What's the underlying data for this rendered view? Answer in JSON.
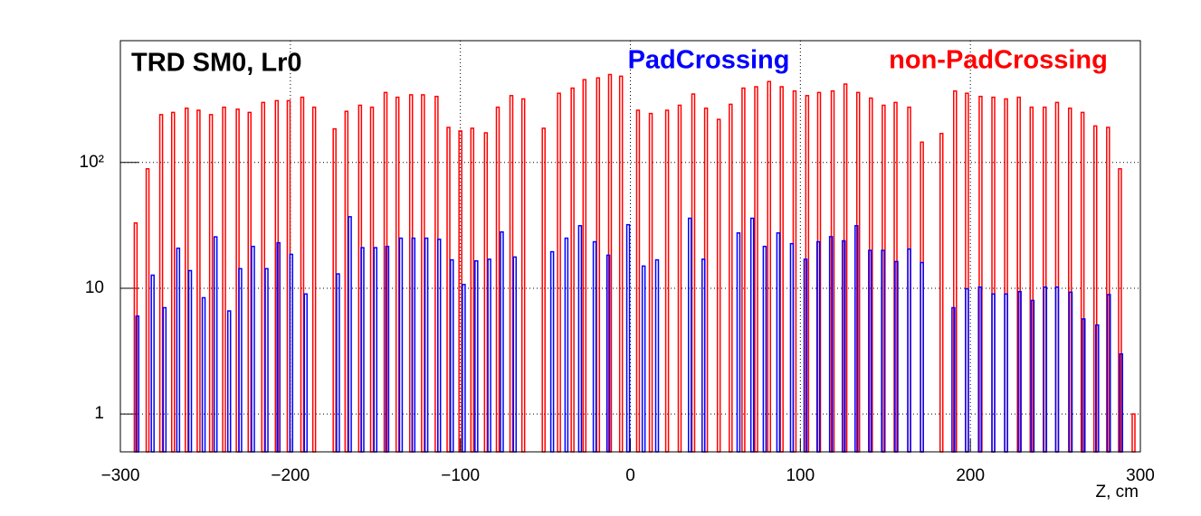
{
  "chart_data": {
    "type": "bar",
    "title": "TRD SM0, Lr0",
    "x_label": "Z, cm",
    "log_y": true,
    "grid": true,
    "xlim": [
      -300,
      300
    ],
    "xticks": [
      {
        "value": -300,
        "label": "−300"
      },
      {
        "value": -200,
        "label": "−200"
      },
      {
        "value": -100,
        "label": "−100"
      },
      0,
      100,
      200,
      300
    ],
    "ylim": [
      0.5,
      930
    ],
    "yticks": [
      1,
      10,
      {
        "value": 100,
        "label": "10²"
      }
    ],
    "series": [
      {
        "name": "non-PadCrossing",
        "color": "#ff0000",
        "x": [
          -291,
          -284,
          -276,
          -269,
          -261,
          -254,
          -246.7,
          -239,
          -231,
          -224,
          -216,
          -208,
          -201,
          -193,
          -186,
          -174,
          -167,
          -159,
          -152,
          -144,
          -137,
          -129,
          -122,
          -114,
          -107,
          -100,
          -93,
          -85,
          -78,
          -70,
          -63,
          -51,
          -42,
          -34,
          -27,
          -19,
          -12,
          -5.5,
          4.5,
          12,
          21.6,
          29,
          37,
          44.5,
          52,
          59,
          66.5,
          74,
          81.6,
          89,
          96.6,
          104,
          111,
          119,
          126.5,
          134,
          141.5,
          149,
          156,
          164,
          171.5,
          183,
          191,
          198,
          206,
          213.5,
          221,
          228.5,
          236,
          243.7,
          251,
          258.6,
          266,
          273.5,
          281,
          288,
          296
        ],
        "values": [
          33,
          89,
          240,
          250,
          270,
          260,
          240,
          275,
          265,
          250,
          300,
          310,
          310,
          330,
          275,
          185,
          255,
          285,
          275,
          360,
          330,
          345,
          345,
          335,
          190,
          178,
          187,
          172,
          275,
          340,
          320,
          187,
          355,
          390,
          455,
          470,
          500,
          485,
          260,
          245,
          260,
          285,
          350,
          270,
          220,
          290,
          390,
          400,
          440,
          400,
          370,
          340,
          360,
          370,
          420,
          360,
          325,
          285,
          300,
          275,
          145,
          170,
          370,
          355,
          335,
          330,
          320,
          330,
          275,
          275,
          300,
          270,
          250,
          195,
          190,
          89,
          1
        ]
      },
      {
        "name": "PadCrossing",
        "color": "#0000ff",
        "x": [
          -290,
          -281,
          -274,
          -266,
          -259,
          -251,
          -244,
          -236,
          -229.5,
          -222,
          -214,
          -207,
          -199.5,
          -191,
          -172,
          -165,
          -157.6,
          -150,
          -143,
          -135,
          -127.6,
          -120,
          -112.5,
          -105,
          -98,
          -90.6,
          -83,
          -75.6,
          -68,
          -46,
          -37.6,
          -29.6,
          -21,
          -13,
          -1.3,
          7.8,
          15.7,
          35,
          43,
          63.6,
          71.7,
          79,
          87,
          95,
          103,
          110.6,
          118,
          125.5,
          133,
          141,
          148.6,
          156.5,
          164,
          171.5,
          190,
          198,
          205.6,
          213.5,
          221,
          229,
          236.6,
          244,
          251,
          259,
          266.6,
          274.6,
          281.5,
          288.7
        ],
        "values": [
          6,
          12.7,
          7,
          20.8,
          13.8,
          8.4,
          25.6,
          6.6,
          14.3,
          21.5,
          14.3,
          23,
          18.6,
          9,
          13,
          37,
          21,
          21,
          21.5,
          25,
          25,
          25,
          24.5,
          16.8,
          10.7,
          16.5,
          17,
          28,
          17.7,
          19.5,
          25,
          31.4,
          23.4,
          18.3,
          32,
          15,
          16.8,
          36,
          17,
          27.5,
          36,
          21.5,
          27.5,
          22.6,
          17,
          23.4,
          25.7,
          23.8,
          31.4,
          20,
          20,
          16.3,
          20.5,
          16,
          7,
          9.9,
          10.2,
          9,
          9,
          9.4,
          8,
          10.2,
          10.2,
          9.3,
          5.7,
          5.1,
          8.9,
          3
        ]
      }
    ]
  }
}
